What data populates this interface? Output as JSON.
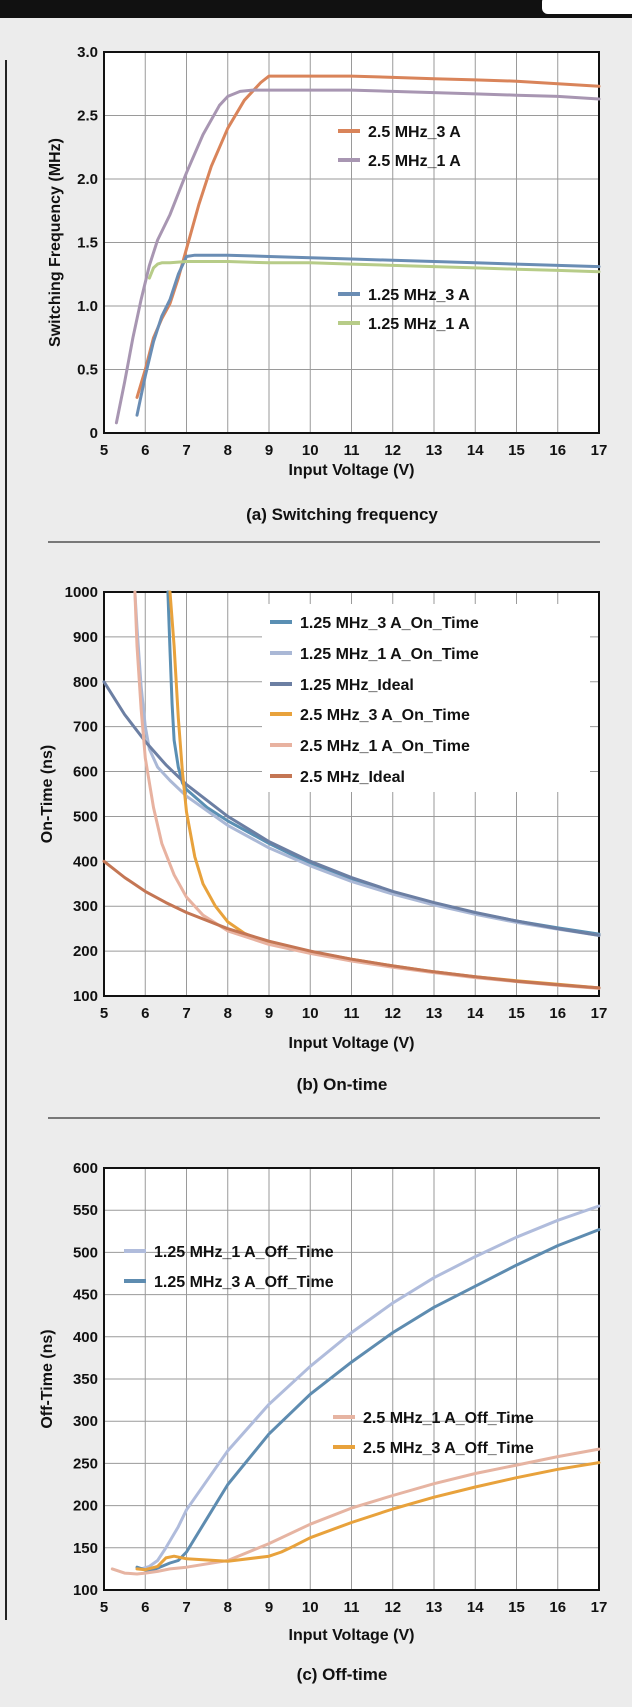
{
  "chart_data": [
    {
      "type": "line",
      "caption": "(a) Switching frequency",
      "xlabel": "Input Voltage (V)",
      "ylabel": "Switching Frequency (MHz)",
      "xlim": [
        5,
        17
      ],
      "ylim": [
        0,
        3.0
      ],
      "xticks": [
        "5",
        "6",
        "7",
        "8",
        "9",
        "10",
        "11",
        "12",
        "13",
        "14",
        "15",
        "16",
        "17"
      ],
      "yticks": [
        "0",
        "0.5",
        "1.0",
        "1.5",
        "2.0",
        "2.5",
        "3.0"
      ],
      "grid": true,
      "series": [
        {
          "name": "2.5 MHz_3 A",
          "color": "#d9845a",
          "x": [
            5.8,
            6.0,
            6.2,
            6.4,
            6.6,
            6.8,
            7.0,
            7.3,
            7.6,
            8.0,
            8.4,
            8.8,
            9.0,
            9.5,
            10,
            11,
            12,
            13,
            14,
            15,
            16,
            17
          ],
          "y": [
            0.28,
            0.5,
            0.75,
            0.9,
            1.02,
            1.22,
            1.45,
            1.8,
            2.1,
            2.4,
            2.62,
            2.76,
            2.81,
            2.81,
            2.81,
            2.81,
            2.8,
            2.79,
            2.78,
            2.77,
            2.75,
            2.73
          ]
        },
        {
          "name": "2.5 MHz_1 A",
          "color": "#a896b2",
          "x": [
            5.3,
            5.5,
            5.7,
            5.9,
            6.1,
            6.3,
            6.6,
            7.0,
            7.4,
            7.8,
            8.0,
            8.3,
            8.6,
            9.0,
            10,
            11,
            12,
            13,
            14,
            15,
            16,
            17
          ],
          "y": [
            0.08,
            0.4,
            0.75,
            1.05,
            1.32,
            1.52,
            1.72,
            2.05,
            2.35,
            2.58,
            2.65,
            2.69,
            2.7,
            2.7,
            2.7,
            2.7,
            2.69,
            2.68,
            2.67,
            2.66,
            2.65,
            2.63
          ]
        },
        {
          "name": "1.25 MHz_3 A",
          "color": "#6a8db4",
          "x": [
            5.8,
            6.0,
            6.2,
            6.4,
            6.6,
            6.8,
            7.0,
            7.2,
            8,
            9,
            10,
            11,
            12,
            13,
            14,
            15,
            16,
            17
          ],
          "y": [
            0.14,
            0.45,
            0.72,
            0.92,
            1.05,
            1.25,
            1.39,
            1.4,
            1.4,
            1.39,
            1.38,
            1.37,
            1.36,
            1.35,
            1.34,
            1.33,
            1.32,
            1.31
          ]
        },
        {
          "name": "1.25 MHz_1 A",
          "color": "#b7cc88",
          "x": [
            6.1,
            6.2,
            6.3,
            6.4,
            6.6,
            7,
            8,
            9,
            10,
            11,
            12,
            13,
            14,
            15,
            16,
            17
          ],
          "y": [
            1.22,
            1.3,
            1.33,
            1.34,
            1.34,
            1.35,
            1.35,
            1.34,
            1.34,
            1.33,
            1.32,
            1.31,
            1.3,
            1.29,
            1.28,
            1.27
          ]
        }
      ]
    },
    {
      "type": "line",
      "caption": "(b) On-time",
      "xlabel": "Input Voltage (V)",
      "ylabel": "On-Time (ns)",
      "xlim": [
        5,
        17
      ],
      "ylim": [
        100,
        1000
      ],
      "xticks": [
        "5",
        "6",
        "7",
        "8",
        "9",
        "10",
        "11",
        "12",
        "13",
        "14",
        "15",
        "16",
        "17"
      ],
      "yticks": [
        "100",
        "200",
        "300",
        "400",
        "500",
        "600",
        "700",
        "800",
        "900",
        "1000"
      ],
      "grid": true,
      "series": [
        {
          "name": "1.25 MHz_3 A_On_Time",
          "color": "#5a8fb3",
          "x": [
            6.55,
            6.6,
            6.65,
            6.7,
            6.8,
            6.9,
            7.0,
            7.5,
            8,
            9,
            10,
            11,
            12,
            13,
            14,
            15,
            16,
            17
          ],
          "y": [
            1000,
            870,
            750,
            670,
            610,
            575,
            560,
            520,
            490,
            440,
            395,
            360,
            330,
            305,
            285,
            267,
            252,
            238
          ]
        },
        {
          "name": "1.25 MHz_1 A_On_Time",
          "color": "#aab8d6",
          "x": [
            5.75,
            5.8,
            5.9,
            6.0,
            6.1,
            6.3,
            6.6,
            7,
            8,
            9,
            10,
            11,
            12,
            13,
            14,
            15,
            16,
            17
          ],
          "y": [
            1000,
            920,
            790,
            700,
            650,
            610,
            580,
            545,
            480,
            430,
            390,
            355,
            327,
            303,
            282,
            264,
            249,
            235
          ]
        },
        {
          "name": "1.25 MHz_Ideal",
          "color": "#6c7fa3",
          "x": [
            5,
            5.5,
            6,
            6.5,
            7,
            8,
            9,
            10,
            11,
            12,
            13,
            14,
            15,
            16,
            17
          ],
          "y": [
            800,
            727,
            667,
            615,
            571,
            500,
            444,
            400,
            364,
            333,
            308,
            286,
            267,
            250,
            235
          ]
        },
        {
          "name": "2.5 MHz_3 A_On_Time",
          "color": "#e8a23c",
          "x": [
            6.6,
            6.7,
            6.8,
            6.9,
            7.0,
            7.2,
            7.4,
            7.7,
            8.0,
            8.4,
            8.8,
            9.0,
            10,
            11,
            12,
            13,
            14,
            15,
            16,
            17
          ],
          "y": [
            1000,
            880,
            720,
            600,
            510,
            410,
            350,
            300,
            265,
            240,
            224,
            220,
            199,
            182,
            167,
            154,
            143,
            134,
            126,
            118
          ]
        },
        {
          "name": "2.5 MHz_1 A_On_Time",
          "color": "#e8b2a0",
          "x": [
            5.75,
            5.8,
            5.9,
            6.0,
            6.2,
            6.4,
            6.7,
            7.0,
            7.4,
            8,
            9,
            10,
            11,
            12,
            13,
            14,
            15,
            16,
            17
          ],
          "y": [
            1000,
            880,
            740,
            630,
            520,
            440,
            370,
            320,
            280,
            245,
            215,
            195,
            178,
            164,
            152,
            141,
            132,
            124,
            117
          ]
        },
        {
          "name": "2.5 MHz_Ideal",
          "color": "#c47654",
          "x": [
            5,
            5.5,
            6,
            6.5,
            7,
            8,
            9,
            10,
            11,
            12,
            13,
            14,
            15,
            16,
            17
          ],
          "y": [
            400,
            364,
            333,
            308,
            286,
            250,
            222,
            200,
            182,
            167,
            154,
            143,
            133,
            125,
            118
          ]
        }
      ]
    },
    {
      "type": "line",
      "caption": "(c) Off-time",
      "xlabel": "Input Voltage (V)",
      "ylabel": "Off-Time (ns)",
      "xlim": [
        5,
        17
      ],
      "ylim": [
        100,
        600
      ],
      "xticks": [
        "5",
        "6",
        "7",
        "8",
        "9",
        "10",
        "11",
        "12",
        "13",
        "14",
        "15",
        "16",
        "17"
      ],
      "yticks": [
        "100",
        "150",
        "200",
        "250",
        "300",
        "350",
        "400",
        "450",
        "500",
        "550",
        "600"
      ],
      "grid": true,
      "series": [
        {
          "name": "1.25 MHz_1 A_Off_Time",
          "color": "#b0bcdc",
          "x": [
            5.9,
            6.1,
            6.3,
            6.5,
            6.8,
            7,
            8,
            9,
            10,
            11,
            12,
            13,
            14,
            15,
            16,
            17
          ],
          "y": [
            125,
            128,
            135,
            150,
            175,
            195,
            265,
            320,
            365,
            405,
            440,
            470,
            495,
            518,
            538,
            555
          ]
        },
        {
          "name": "1.25 MHz_3 A_Off_Time",
          "color": "#5e8cb0",
          "x": [
            5.8,
            6.1,
            6.4,
            6.6,
            6.8,
            7.0,
            7.5,
            8,
            9,
            10,
            11,
            12,
            13,
            14,
            15,
            16,
            17
          ],
          "y": [
            127,
            122,
            128,
            132,
            135,
            145,
            185,
            225,
            285,
            332,
            370,
            405,
            435,
            460,
            485,
            508,
            527
          ]
        },
        {
          "name": "2.5 MHz_1 A_Off_Time",
          "color": "#e6b4a2",
          "x": [
            5.2,
            5.5,
            5.8,
            6.0,
            6.3,
            6.6,
            7,
            8,
            9,
            10,
            11,
            12,
            13,
            14,
            15,
            16,
            17
          ],
          "y": [
            125,
            120,
            119,
            120,
            122,
            125,
            127,
            135,
            155,
            178,
            197,
            212,
            226,
            238,
            248,
            258,
            267
          ]
        },
        {
          "name": "2.5 MHz_3 A_Off_Time",
          "color": "#e8a23c",
          "x": [
            5.8,
            6.0,
            6.3,
            6.5,
            6.7,
            7,
            8,
            9,
            9.3,
            9.6,
            10,
            11,
            12,
            13,
            14,
            15,
            16,
            17
          ],
          "y": [
            125,
            124,
            128,
            138,
            140,
            137,
            134,
            140,
            145,
            152,
            162,
            180,
            196,
            210,
            222,
            233,
            243,
            251
          ]
        }
      ]
    }
  ]
}
